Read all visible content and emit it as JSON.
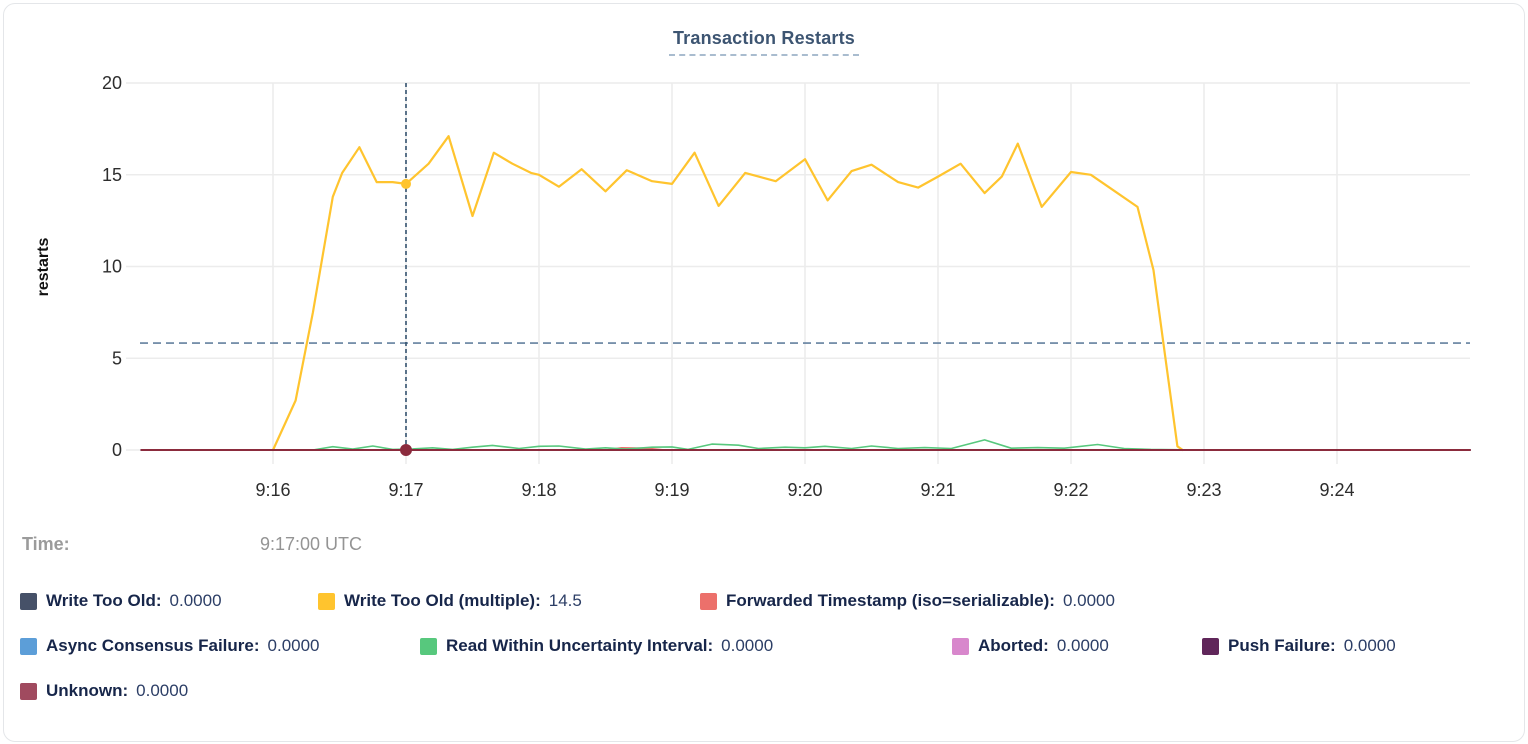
{
  "header": {
    "title": "Transaction Restarts"
  },
  "tooltip": {
    "time_label": "Time:",
    "time_value": "9:17:00 UTC"
  },
  "chart_data": {
    "type": "line",
    "title": "Transaction Restarts",
    "ylabel": "restarts",
    "ylim": [
      0,
      20
    ],
    "y_ticks": [
      0,
      5,
      10,
      15,
      20
    ],
    "x_ticks": [
      "9:16",
      "9:17",
      "9:18",
      "9:19",
      "9:20",
      "9:21",
      "9:22",
      "9:23",
      "9:24"
    ],
    "x_tick_minutes": [
      16,
      17,
      18,
      19,
      20,
      21,
      22,
      23,
      24
    ],
    "x_domain_minutes": [
      15.0,
      25.0
    ],
    "grid": true,
    "threshold_line_value": 5.83,
    "crosshair": {
      "minute": 17.0,
      "time": "9:17:00 UTC",
      "dots": [
        {
          "series_id": "write_too_old_multiple",
          "value": 14.5,
          "r": 4.5
        },
        {
          "series_id": "unknown",
          "value": 0,
          "r": 5.5
        }
      ]
    },
    "series": [
      {
        "id": "write_too_old",
        "name": "Write Too Old",
        "color": "#465168",
        "width": 1.8,
        "value_at_cursor": "0.0000",
        "points": [
          [
            15.01,
            0
          ],
          [
            25.0,
            0
          ]
        ]
      },
      {
        "id": "write_too_old_multiple",
        "name": "Write Too Old (multiple)",
        "color": "#ffc42e",
        "width": 2.2,
        "value_at_cursor": "14.5",
        "points": [
          [
            16.0,
            0
          ],
          [
            16.17,
            2.7
          ],
          [
            16.3,
            7.5
          ],
          [
            16.45,
            13.8
          ],
          [
            16.52,
            15.1
          ],
          [
            16.65,
            16.5
          ],
          [
            16.78,
            14.6
          ],
          [
            16.9,
            14.6
          ],
          [
            17.0,
            14.5
          ],
          [
            17.17,
            15.6
          ],
          [
            17.32,
            17.1
          ],
          [
            17.5,
            12.75
          ],
          [
            17.66,
            16.2
          ],
          [
            17.8,
            15.6
          ],
          [
            17.94,
            15.1
          ],
          [
            18.0,
            15.0
          ],
          [
            18.15,
            14.35
          ],
          [
            18.32,
            15.3
          ],
          [
            18.5,
            14.1
          ],
          [
            18.66,
            15.25
          ],
          [
            18.85,
            14.65
          ],
          [
            19.0,
            14.5
          ],
          [
            19.17,
            16.2
          ],
          [
            19.35,
            13.3
          ],
          [
            19.55,
            15.1
          ],
          [
            19.78,
            14.65
          ],
          [
            20.0,
            15.85
          ],
          [
            20.17,
            13.6
          ],
          [
            20.35,
            15.2
          ],
          [
            20.5,
            15.55
          ],
          [
            20.7,
            14.6
          ],
          [
            20.85,
            14.3
          ],
          [
            21.0,
            14.9
          ],
          [
            21.17,
            15.6
          ],
          [
            21.35,
            14.0
          ],
          [
            21.48,
            14.9
          ],
          [
            21.6,
            16.7
          ],
          [
            21.78,
            13.25
          ],
          [
            22.0,
            15.15
          ],
          [
            22.15,
            15.0
          ],
          [
            22.33,
            14.1
          ],
          [
            22.5,
            13.25
          ],
          [
            22.62,
            9.8
          ],
          [
            22.8,
            0.2
          ],
          [
            22.84,
            0
          ]
        ]
      },
      {
        "id": "forwarded_timestamp",
        "name": "Forwarded Timestamp (iso=serializable)",
        "color": "#ec706b",
        "width": 1.6,
        "value_at_cursor": "0.0000",
        "points": [
          [
            15.01,
            0
          ],
          [
            18.5,
            0
          ],
          [
            18.62,
            0.12
          ],
          [
            18.8,
            0.1
          ],
          [
            18.95,
            0
          ],
          [
            25.0,
            0
          ]
        ]
      },
      {
        "id": "async_consensus_failure",
        "name": "Async Consensus Failure",
        "color": "#5c9ed8",
        "width": 1.8,
        "value_at_cursor": "0.0000",
        "points": [
          [
            15.01,
            0
          ],
          [
            25.0,
            0
          ]
        ]
      },
      {
        "id": "read_within_uncertainty",
        "name": "Read Within Uncertainty Interval",
        "color": "#57c87d",
        "width": 1.6,
        "value_at_cursor": "0.0000",
        "points": [
          [
            15.01,
            0
          ],
          [
            16.3,
            0
          ],
          [
            16.45,
            0.18
          ],
          [
            16.6,
            0.05
          ],
          [
            16.75,
            0.22
          ],
          [
            16.9,
            0.03
          ],
          [
            17.05,
            0.06
          ],
          [
            17.2,
            0.12
          ],
          [
            17.35,
            0.03
          ],
          [
            17.5,
            0.15
          ],
          [
            17.65,
            0.25
          ],
          [
            17.85,
            0.08
          ],
          [
            18.0,
            0.2
          ],
          [
            18.15,
            0.22
          ],
          [
            18.35,
            0.05
          ],
          [
            18.5,
            0.12
          ],
          [
            18.65,
            0.05
          ],
          [
            18.85,
            0.15
          ],
          [
            19.0,
            0.17
          ],
          [
            19.12,
            0.03
          ],
          [
            19.3,
            0.32
          ],
          [
            19.5,
            0.26
          ],
          [
            19.65,
            0.08
          ],
          [
            19.85,
            0.15
          ],
          [
            20.0,
            0.12
          ],
          [
            20.15,
            0.2
          ],
          [
            20.35,
            0.08
          ],
          [
            20.5,
            0.22
          ],
          [
            20.7,
            0.08
          ],
          [
            20.9,
            0.13
          ],
          [
            21.1,
            0.08
          ],
          [
            21.35,
            0.55
          ],
          [
            21.55,
            0.1
          ],
          [
            21.75,
            0.13
          ],
          [
            21.95,
            0.1
          ],
          [
            22.2,
            0.3
          ],
          [
            22.4,
            0.08
          ],
          [
            22.6,
            0.03
          ],
          [
            23.0,
            0
          ],
          [
            25.0,
            0
          ]
        ]
      },
      {
        "id": "aborted",
        "name": "Aborted",
        "color": "#d887cc",
        "width": 1.8,
        "value_at_cursor": "0.0000",
        "points": [
          [
            15.01,
            0
          ],
          [
            25.0,
            0
          ]
        ]
      },
      {
        "id": "push_failure",
        "name": "Push Failure",
        "color": "#60265a",
        "width": 1.8,
        "value_at_cursor": "0.0000",
        "points": [
          [
            15.01,
            0
          ],
          [
            25.0,
            0
          ]
        ]
      },
      {
        "id": "unknown",
        "name": "Unknown",
        "color": "#a04a5f",
        "line_color": "#8b2b3d",
        "width": 2.0,
        "value_at_cursor": "0.0000",
        "points": [
          [
            15.01,
            0
          ],
          [
            25.0,
            0
          ]
        ]
      }
    ],
    "colors": {
      "gridline": "#ececec",
      "crosshair": "#35536f",
      "threshold": "#64809f"
    },
    "legend_rows": [
      [
        "write_too_old",
        "write_too_old_multiple",
        "forwarded_timestamp"
      ],
      [
        "async_consensus_failure",
        "read_within_uncertainty",
        "aborted",
        "push_failure"
      ],
      [
        "unknown"
      ]
    ]
  }
}
